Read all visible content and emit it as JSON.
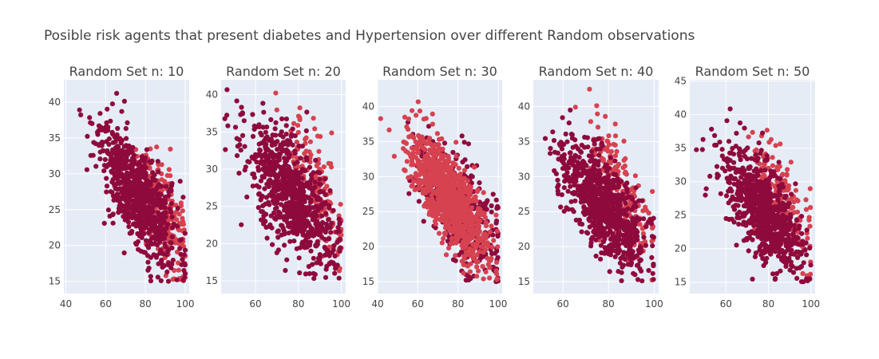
{
  "chart_data": {
    "type": "scatter",
    "title": "Posible risk agents that present diabetes and Hypertension over different Random observations",
    "colors": {
      "dark": "#8e0a3c",
      "light": "#d6424f",
      "plot_background": "#e5ecf6",
      "grid": "#ffffff"
    },
    "subplots": [
      {
        "title": "Random Set n: 10",
        "xlim": [
          39,
          102
        ],
        "ylim": [
          13.3,
          43.1
        ],
        "xticks": [
          40,
          60,
          80,
          100
        ],
        "yticks": [
          15,
          20,
          25,
          30,
          35,
          40
        ],
        "seed": 11,
        "light_on_top": false,
        "series": [
          {
            "name": "",
            "color": "#8e0a3c",
            "count": 750,
            "x_mean": 76,
            "x_sd": 10,
            "slope": -0.33,
            "y_at_mean": 27,
            "y_sd": 3.4
          },
          {
            "name": "",
            "color": "#d6424f",
            "count": 260,
            "x_mean": 88,
            "x_sd": 7,
            "slope": -0.5,
            "y_at_mean": 25,
            "y_sd": 3.5
          }
        ]
      },
      {
        "title": "Random Set n: 20",
        "xlim": [
          44,
          102
        ],
        "ylim": [
          13.3,
          42.0
        ],
        "xticks": [
          60,
          80,
          100
        ],
        "yticks": [
          15,
          20,
          25,
          30,
          35,
          40
        ],
        "seed": 22,
        "light_on_top": false,
        "series": [
          {
            "name": "",
            "color": "#8e0a3c",
            "count": 750,
            "x_mean": 76,
            "x_sd": 10,
            "slope": -0.3,
            "y_at_mean": 27,
            "y_sd": 3.5
          },
          {
            "name": "",
            "color": "#d6424f",
            "count": 180,
            "x_mean": 88,
            "x_sd": 7,
            "slope": -0.45,
            "y_at_mean": 27,
            "y_sd": 3.5
          }
        ]
      },
      {
        "title": "Random Set n: 30",
        "xlim": [
          40,
          102
        ],
        "ylim": [
          13.3,
          43.8
        ],
        "xticks": [
          40,
          60,
          80,
          100
        ],
        "yticks": [
          15,
          20,
          25,
          30,
          35,
          40
        ],
        "seed": 33,
        "light_on_top": true,
        "series": [
          {
            "name": "",
            "color": "#8e0a3c",
            "count": 420,
            "x_mean": 80,
            "x_sd": 10,
            "slope": -0.3,
            "y_at_mean": 26,
            "y_sd": 3.6
          },
          {
            "name": "",
            "color": "#d6424f",
            "count": 900,
            "x_mean": 76,
            "x_sd": 10,
            "slope": -0.32,
            "y_at_mean": 27,
            "y_sd": 3
          }
        ]
      },
      {
        "title": "Random Set n: 40",
        "xlim": [
          47,
          102
        ],
        "ylim": [
          13.3,
          43.8
        ],
        "xticks": [
          60,
          80,
          100
        ],
        "yticks": [
          15,
          20,
          25,
          30,
          35,
          40
        ],
        "seed": 44,
        "light_on_top": false,
        "series": [
          {
            "name": "",
            "color": "#8e0a3c",
            "count": 780,
            "x_mean": 77,
            "x_sd": 9,
            "slope": -0.33,
            "y_at_mean": 26,
            "y_sd": 3.4
          },
          {
            "name": "",
            "color": "#d6424f",
            "count": 200,
            "x_mean": 86,
            "x_sd": 8,
            "slope": -0.45,
            "y_at_mean": 27,
            "y_sd": 3.5
          }
        ]
      },
      {
        "title": "Random Set n: 50",
        "xlim": [
          43,
          102
        ],
        "ylim": [
          13.3,
          45.2
        ],
        "xticks": [
          60,
          80,
          100
        ],
        "yticks": [
          15,
          20,
          25,
          30,
          35,
          40,
          45
        ],
        "seed": 55,
        "light_on_top": false,
        "series": [
          {
            "name": "",
            "color": "#8e0a3c",
            "count": 760,
            "x_mean": 77,
            "x_sd": 9,
            "slope": -0.33,
            "y_at_mean": 26,
            "y_sd": 3.4
          },
          {
            "name": "",
            "color": "#d6424f",
            "count": 200,
            "x_mean": 86,
            "x_sd": 7,
            "slope": -0.45,
            "y_at_mean": 27,
            "y_sd": 3.5
          }
        ]
      }
    ]
  }
}
